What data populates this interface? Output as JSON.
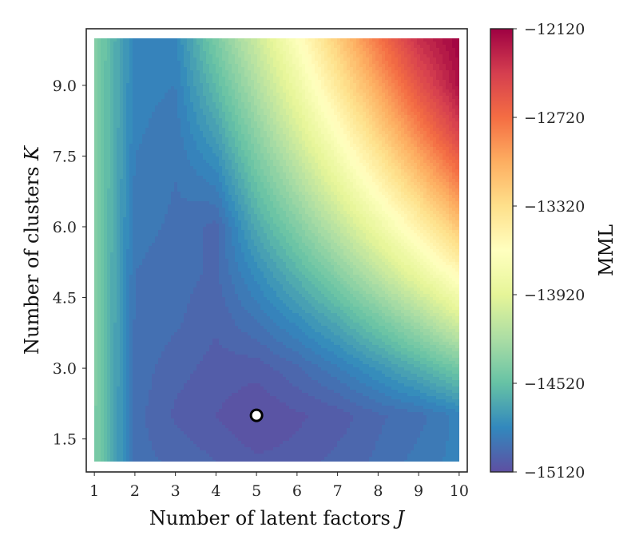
{
  "chart_data": {
    "type": "heatmap",
    "style": "filled-contour",
    "xlabel": "Number of latent factors",
    "xlabel_var": "J",
    "ylabel": "Number of clusters",
    "ylabel_var": "K",
    "colorbar_label": "MML",
    "colormap": "Spectral_r",
    "x": [
      1,
      2,
      3,
      4,
      5,
      6,
      7,
      8,
      9,
      10
    ],
    "y": [
      1,
      2,
      3,
      4,
      5,
      6,
      7,
      8,
      9,
      10
    ],
    "xlim": [
      0.8,
      10.2
    ],
    "ylim": [
      0.8,
      10.2
    ],
    "x_ticks": [
      "1",
      "2",
      "3",
      "4",
      "5",
      "6",
      "7",
      "8",
      "9",
      "10"
    ],
    "x_tick_values": [
      1,
      2,
      3,
      4,
      5,
      6,
      7,
      8,
      9,
      10
    ],
    "y_ticks": [
      "1.5",
      "3.0",
      "4.5",
      "6.0",
      "7.5",
      "9.0"
    ],
    "y_tick_values": [
      1.5,
      3.0,
      4.5,
      6.0,
      7.5,
      9.0
    ],
    "colorbar_ticks": [
      "−12120",
      "−12720",
      "−13320",
      "−13920",
      "−14520",
      "−15120"
    ],
    "colorbar_tick_values": [
      -12120,
      -12720,
      -13320,
      -13920,
      -14520,
      -15120
    ],
    "clim": [
      -15120,
      -12120
    ],
    "z_rows_by_K": [
      [
        -14400,
        -14950,
        -14980,
        -15020,
        -15060,
        -15050,
        -15000,
        -14960,
        -14900,
        -14850
      ],
      [
        -14400,
        -14950,
        -15030,
        -15070,
        -15120,
        -15080,
        -15050,
        -14980,
        -14940,
        -14850
      ],
      [
        -14400,
        -14940,
        -15000,
        -15040,
        -15050,
        -14980,
        -14880,
        -14760,
        -14620,
        -14460
      ],
      [
        -14400,
        -14930,
        -14960,
        -15010,
        -14920,
        -14800,
        -14650,
        -14460,
        -14250,
        -14000
      ],
      [
        -14400,
        -14920,
        -14950,
        -14980,
        -14800,
        -14600,
        -14380,
        -14130,
        -13860,
        -13570
      ],
      [
        -14400,
        -14900,
        -14930,
        -14990,
        -14650,
        -14400,
        -14120,
        -13820,
        -13500,
        -13160
      ],
      [
        -14400,
        -14880,
        -14920,
        -14850,
        -14500,
        -14200,
        -13870,
        -13520,
        -13150,
        -12780
      ],
      [
        -14400,
        -14860,
        -14900,
        -14700,
        -14350,
        -14000,
        -13630,
        -13240,
        -12830,
        -12450
      ],
      [
        -14400,
        -14850,
        -14870,
        -14560,
        -14200,
        -13820,
        -13400,
        -12980,
        -12560,
        -12200
      ],
      [
        -14400,
        -14830,
        -14830,
        -14430,
        -14060,
        -13650,
        -13200,
        -12760,
        -12340,
        -12120
      ]
    ],
    "marker": {
      "x": 5,
      "y": 2,
      "label": "optimum"
    }
  }
}
